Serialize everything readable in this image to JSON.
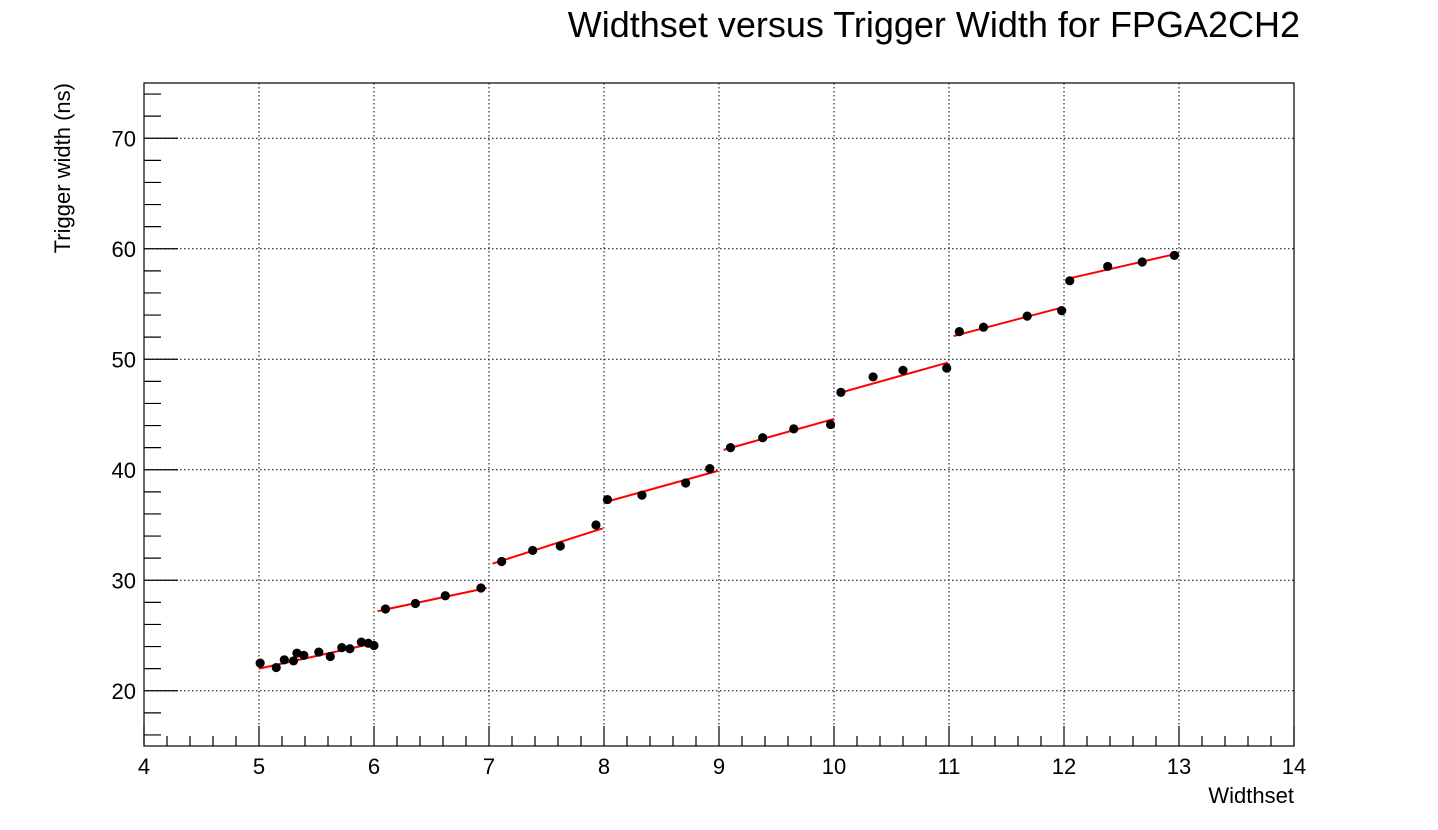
{
  "chart_data": {
    "type": "scatter",
    "title": "Widthset versus Trigger Width for FPGA2CH2",
    "xlabel": "Widthset",
    "ylabel": "Trigger width (ns)",
    "xlim": [
      4,
      14
    ],
    "ylim": [
      15,
      75
    ],
    "x_ticks": [
      4,
      5,
      6,
      7,
      8,
      9,
      10,
      11,
      12,
      13,
      14
    ],
    "y_ticks": [
      20,
      30,
      40,
      50,
      60,
      70
    ],
    "grid": true,
    "legend": "none",
    "marker_color": "#000000",
    "fit_color": "#ff0000",
    "series": [
      {
        "points": [
          [
            5.01,
            22.5
          ],
          [
            5.15,
            22.1
          ],
          [
            5.22,
            22.8
          ],
          [
            5.3,
            22.7
          ],
          [
            5.33,
            23.4
          ],
          [
            5.39,
            23.2
          ],
          [
            5.52,
            23.5
          ],
          [
            5.62,
            23.1
          ],
          [
            5.72,
            23.9
          ],
          [
            5.79,
            23.8
          ],
          [
            5.89,
            24.4
          ],
          [
            5.95,
            24.3
          ],
          [
            6.0,
            24.1
          ],
          [
            6.1,
            27.4
          ],
          [
            6.36,
            27.9
          ],
          [
            6.62,
            28.6
          ],
          [
            6.93,
            29.3
          ],
          [
            7.11,
            31.7
          ],
          [
            7.38,
            32.7
          ],
          [
            7.62,
            33.1
          ],
          [
            7.93,
            35.0
          ],
          [
            8.03,
            37.3
          ],
          [
            8.33,
            37.7
          ],
          [
            8.71,
            38.8
          ],
          [
            8.92,
            40.1
          ],
          [
            9.1,
            42.0
          ],
          [
            9.38,
            42.9
          ],
          [
            9.65,
            43.7
          ],
          [
            9.97,
            44.1
          ],
          [
            10.06,
            47.0
          ],
          [
            10.34,
            48.4
          ],
          [
            10.6,
            49.0
          ],
          [
            10.98,
            49.2
          ],
          [
            11.09,
            52.5
          ],
          [
            11.3,
            52.9
          ],
          [
            11.68,
            53.9
          ],
          [
            11.98,
            54.4
          ],
          [
            12.05,
            57.1
          ],
          [
            12.38,
            58.4
          ],
          [
            12.68,
            58.8
          ],
          [
            12.96,
            59.4
          ]
        ]
      }
    ],
    "fit_segments": [
      {
        "x": [
          5.0,
          6.0
        ],
        "y": [
          22.0,
          24.3
        ]
      },
      {
        "x": [
          6.03,
          6.98
        ],
        "y": [
          27.2,
          29.3
        ]
      },
      {
        "x": [
          7.03,
          7.99
        ],
        "y": [
          31.5,
          34.7
        ]
      },
      {
        "x": [
          8.02,
          8.99
        ],
        "y": [
          37.1,
          39.9
        ]
      },
      {
        "x": [
          9.04,
          10.0
        ],
        "y": [
          41.8,
          44.6
        ]
      },
      {
        "x": [
          10.03,
          10.99
        ],
        "y": [
          46.9,
          49.7
        ]
      },
      {
        "x": [
          11.04,
          11.99
        ],
        "y": [
          52.1,
          54.7
        ]
      },
      {
        "x": [
          12.04,
          13.0
        ],
        "y": [
          57.3,
          59.6
        ]
      }
    ]
  }
}
